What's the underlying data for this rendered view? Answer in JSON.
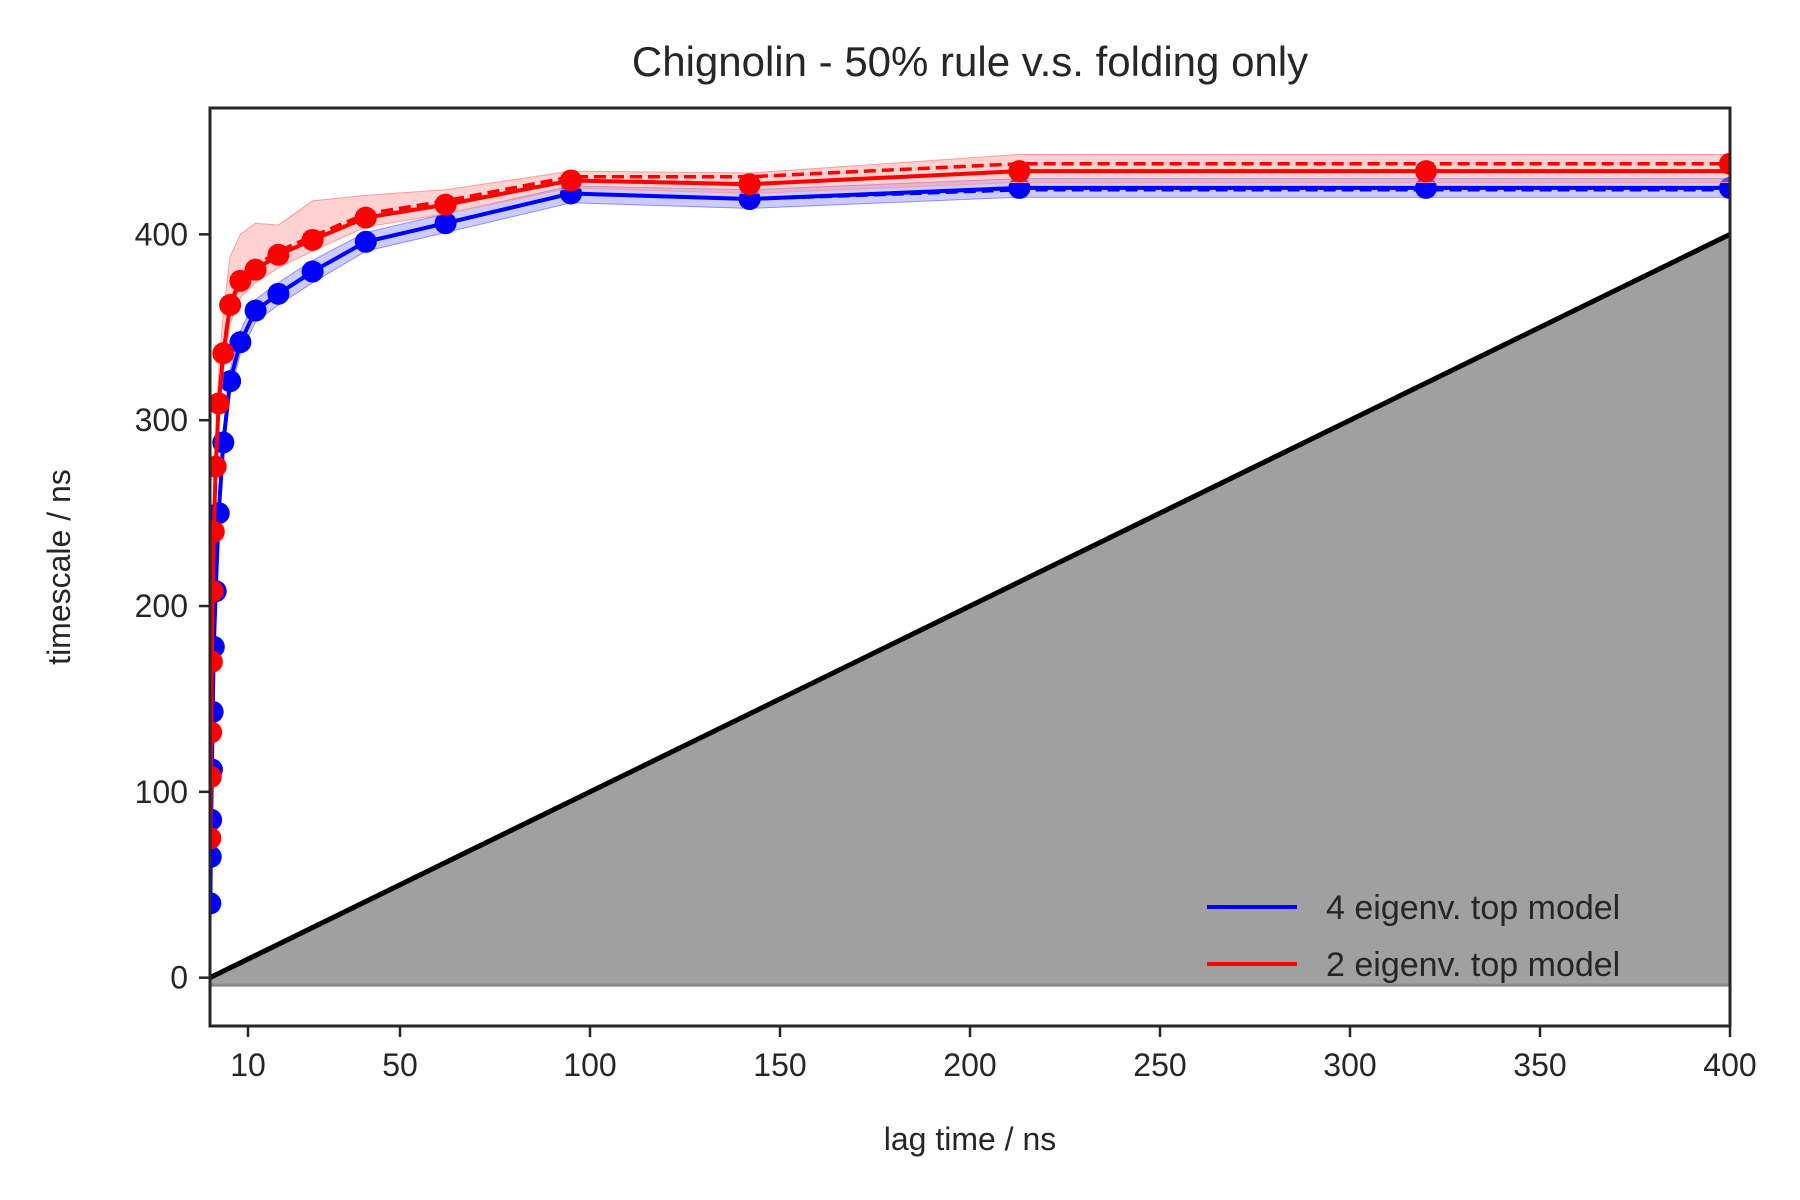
{
  "chart_data": {
    "type": "line",
    "title": "Chignolin - 50% rule v.s. folding only",
    "xlabel": "lag time / ns",
    "ylabel": "timescale / ns",
    "xlim": [
      0,
      400
    ],
    "ylim": [
      -26,
      468
    ],
    "xticks": [
      10,
      50,
      100,
      150,
      200,
      250,
      300,
      350,
      400
    ],
    "yticks": [
      0,
      100,
      200,
      300,
      400
    ],
    "grid": false,
    "legend_position": "bottom-right",
    "lag_times": [
      0.1,
      0.2,
      0.3,
      0.5,
      0.7,
      1.0,
      1.5,
      2.3,
      3.5,
      5.3,
      8.0,
      12,
      18,
      27,
      41,
      62,
      95,
      142,
      213,
      320,
      400
    ],
    "reference": {
      "description": "timescale = lag time",
      "x": [
        0,
        400
      ],
      "y": [
        0,
        400
      ],
      "color": "#000000",
      "shade_color": "#a0a0a0",
      "shade_y_min": -4
    },
    "series": [
      {
        "name": "4 eigenv. top model",
        "color": "#0000ff",
        "band_color": "#8c8cff",
        "solid": [
          40,
          65,
          85,
          112,
          143,
          178,
          208,
          250,
          288,
          321,
          342,
          359,
          368,
          380,
          396,
          406,
          422,
          419,
          425,
          425,
          425
        ],
        "dashed": [
          40,
          65,
          85,
          112,
          143,
          178,
          208,
          250,
          288,
          321,
          342,
          359,
          368,
          380,
          396,
          406,
          422,
          419,
          424,
          424,
          424
        ],
        "band_low": [
          38,
          62,
          82,
          108,
          138,
          172,
          202,
          243,
          281,
          314,
          336,
          353,
          362,
          374,
          391,
          401,
          417,
          414,
          420,
          420,
          420
        ],
        "band_high": [
          43,
          68,
          88,
          116,
          148,
          184,
          214,
          256,
          294,
          327,
          348,
          365,
          374,
          386,
          401,
          411,
          426,
          424,
          430,
          430,
          430
        ],
        "markers": [
          40,
          65,
          85,
          112,
          143,
          178,
          208,
          250,
          288,
          321,
          342,
          359,
          368,
          380,
          396,
          406,
          422,
          419,
          425,
          425,
          425
        ]
      },
      {
        "name": "2 eigenv. top model",
        "color": "#ff0000",
        "band_color": "#ff9a9a",
        "solid": [
          75,
          108,
          132,
          170,
          208,
          240,
          275,
          309,
          336,
          362,
          375,
          381,
          389,
          397,
          409,
          416,
          429,
          427,
          434,
          434,
          434
        ],
        "dashed": [
          75,
          108,
          132,
          170,
          208,
          240,
          275,
          310,
          337,
          363,
          376,
          383,
          391,
          399,
          411,
          418,
          431,
          431,
          438,
          438,
          438
        ],
        "band_low": [
          71,
          103,
          127,
          164,
          201,
          232,
          266,
          299,
          326,
          352,
          366,
          374,
          382,
          391,
          404,
          411,
          425,
          422,
          428,
          428,
          428
        ],
        "band_high": [
          80,
          114,
          138,
          178,
          218,
          252,
          290,
          327,
          358,
          388,
          400,
          406,
          405,
          418,
          421,
          424,
          434,
          433,
          443,
          443,
          443
        ],
        "markers": [
          75,
          108,
          132,
          170,
          208,
          240,
          275,
          309,
          336,
          362,
          375,
          381,
          389,
          397,
          409,
          416,
          429,
          427,
          434,
          434,
          438
        ]
      }
    ]
  }
}
